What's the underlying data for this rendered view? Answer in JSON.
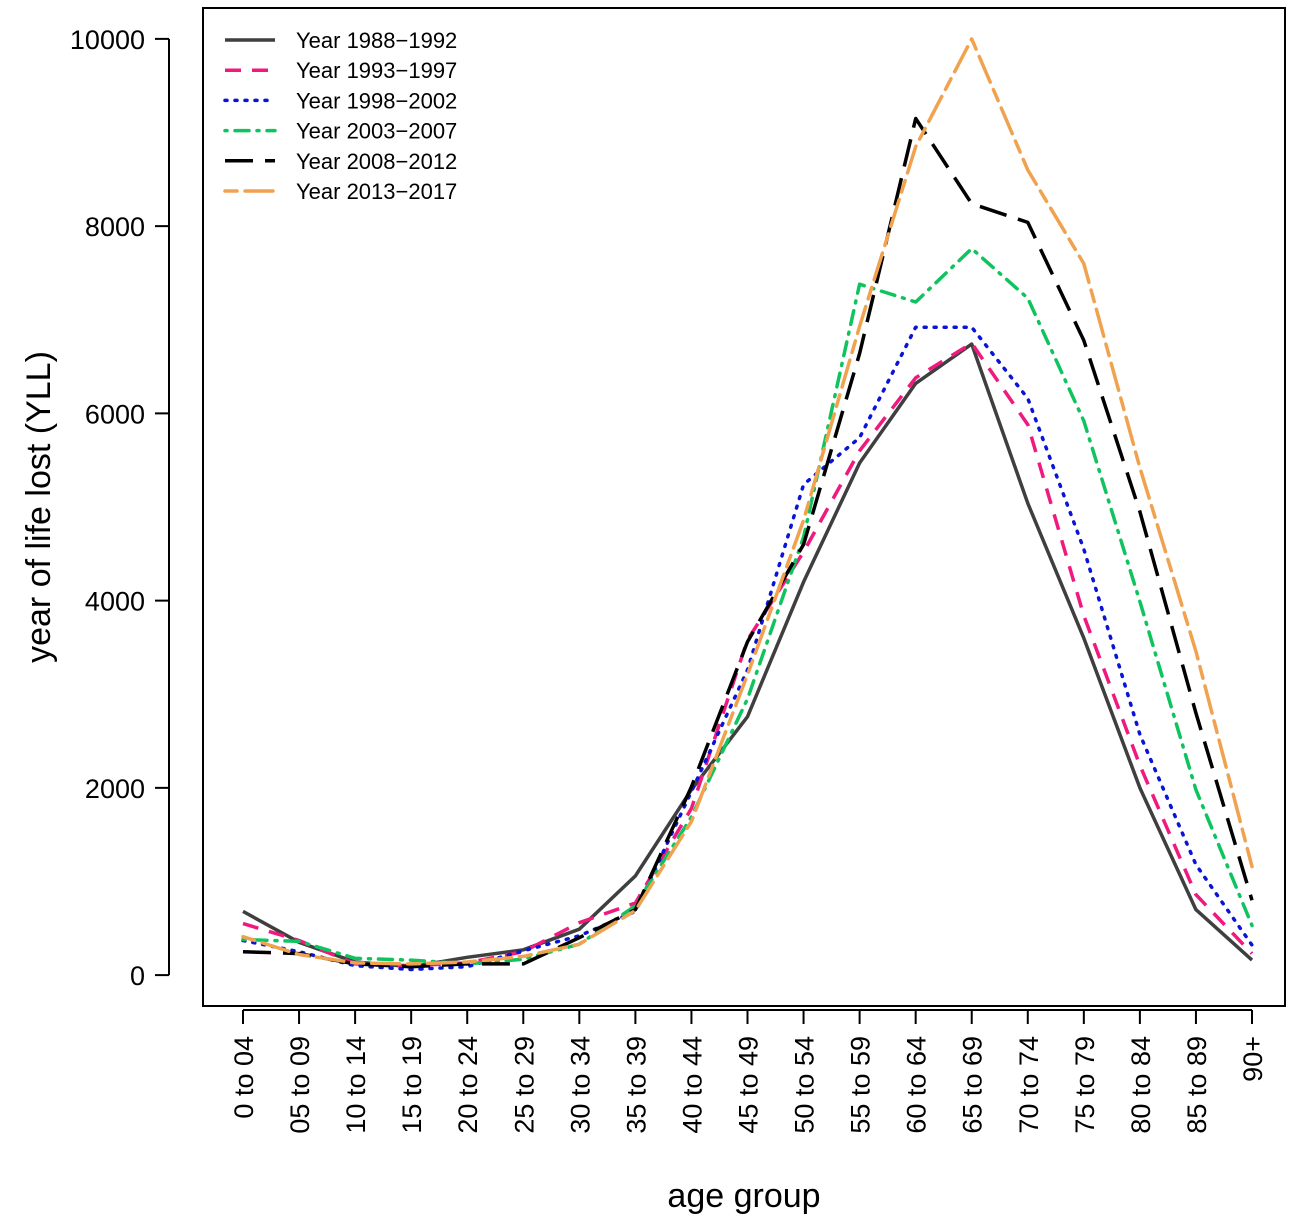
{
  "chart_data": {
    "type": "line",
    "xlabel": "age group",
    "ylabel": "year of life lost (YLL)",
    "categories": [
      "0 to 04",
      "05 to 09",
      "10 to 14",
      "15 to 19",
      "20 to 24",
      "25 to 29",
      "30 to 34",
      "35 to 39",
      "40 to 44",
      "45 to 49",
      "50 to 54",
      "55 to 59",
      "60 to 64",
      "65 to 69",
      "70 to 74",
      "75 to 79",
      "80 to 84",
      "85 to 89",
      "90+"
    ],
    "yticks": [
      0,
      2000,
      4000,
      6000,
      8000,
      10000
    ],
    "ylim": [
      -330,
      10330
    ],
    "grid": false,
    "legend_position": "top-left",
    "series": [
      {
        "name": "Year 1988−1992",
        "color": "#3f3f3f",
        "dash": "solid",
        "values": [
          680,
          350,
          140,
          90,
          190,
          270,
          490,
          1060,
          1980,
          2760,
          4200,
          5470,
          6320,
          6740,
          5040,
          3600,
          2000,
          700,
          160
        ]
      },
      {
        "name": "Year 1993−1997",
        "color": "#f0197e",
        "dash": "dashed",
        "values": [
          550,
          370,
          120,
          100,
          130,
          250,
          560,
          770,
          1780,
          3580,
          4520,
          5600,
          6380,
          6750,
          5880,
          3840,
          2240,
          860,
          230
        ]
      },
      {
        "name": "Year 1998−2002",
        "color": "#0a14d8",
        "dash": "dotted",
        "values": [
          370,
          250,
          100,
          60,
          90,
          260,
          420,
          680,
          1960,
          3260,
          5240,
          5740,
          6920,
          6920,
          6160,
          4550,
          2570,
          1180,
          320
        ]
      },
      {
        "name": "Year 2003−2007",
        "color": "#0fc45f",
        "dash": "dotdash",
        "values": [
          380,
          360,
          180,
          160,
          120,
          170,
          330,
          740,
          1690,
          2950,
          4680,
          7380,
          7190,
          7760,
          7230,
          5920,
          3990,
          1980,
          530
        ]
      },
      {
        "name": "Year 2008−2012",
        "color": "#000000",
        "dash": "longdash",
        "values": [
          250,
          230,
          120,
          90,
          120,
          120,
          400,
          700,
          2010,
          3560,
          4600,
          6640,
          9150,
          8240,
          8040,
          6780,
          4950,
          2800,
          800
        ]
      },
      {
        "name": "Year 2013−2017",
        "color": "#f0a24f",
        "dash": "twodash",
        "values": [
          410,
          220,
          130,
          120,
          140,
          200,
          330,
          690,
          1640,
          3210,
          4860,
          6930,
          8850,
          10000,
          8600,
          7600,
          5420,
          3460,
          1160
        ]
      }
    ]
  }
}
